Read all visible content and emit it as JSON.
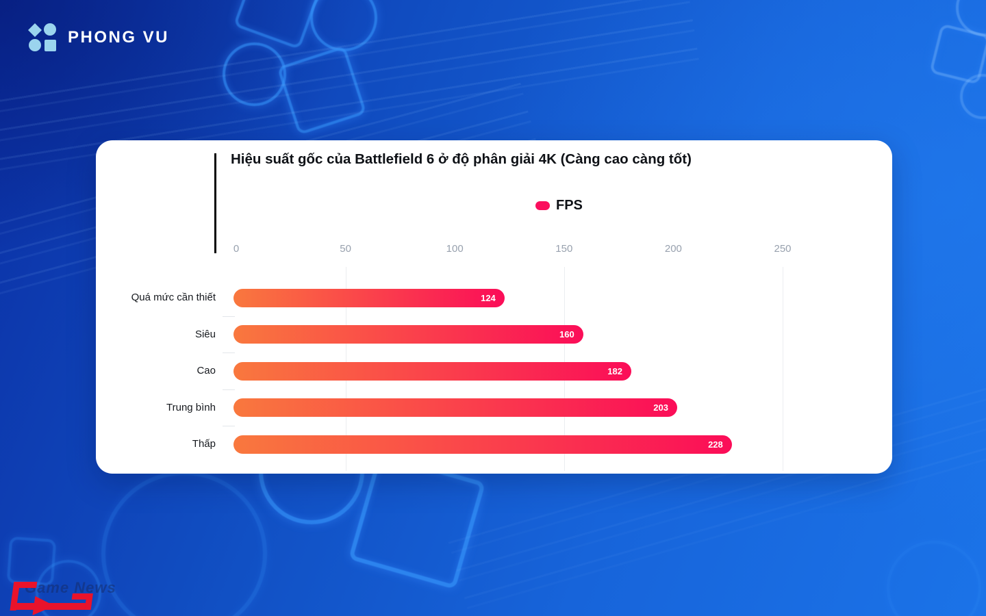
{
  "brand": {
    "name": "PHONG VU",
    "icon_color": "#9BD4EE"
  },
  "watermark": {
    "text": "Game News",
    "logo_color": "#E8132B"
  },
  "chart_data": {
    "type": "bar",
    "orientation": "horizontal",
    "title": "Hiệu suất gốc của Battlefield 6 ở độ phân giải 4K (Càng cao càng tốt)",
    "legend": {
      "label": "FPS",
      "color": "#FB0F5E"
    },
    "categories": [
      "Quá mức cần thiết",
      "Siêu",
      "Cao",
      "Trung bình",
      "Thấp"
    ],
    "values": [
      124,
      160,
      182,
      203,
      228
    ],
    "xlabel": "",
    "ylabel": "",
    "xlim": [
      0,
      250
    ],
    "x_ticks": [
      0,
      50,
      100,
      150,
      200,
      250
    ],
    "gridlines_at": [
      50,
      150,
      250
    ],
    "grid": "vertical-partial",
    "legend_position": "top-center",
    "bar_gradient_start": "#F9783E",
    "bar_gradient_end": "#FB0D58",
    "value_label_color": "#FFFFFF",
    "axis_tick_color": "#98A1AE"
  }
}
